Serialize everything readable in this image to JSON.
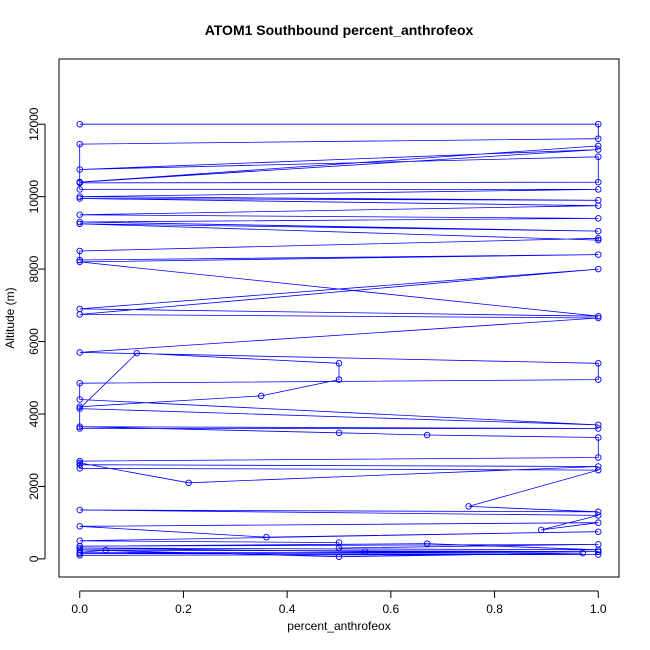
{
  "chart_data": {
    "type": "line",
    "title": "ATOM1 Southbound percent_anthrofeox",
    "xlabel": "percent_anthrofeox",
    "ylabel": "Altitude (m)",
    "xlim": [
      -0.04,
      1.04
    ],
    "ylim": [
      -500,
      13800
    ],
    "x_ticks": [
      0.0,
      0.2,
      0.4,
      0.6,
      0.8,
      1.0
    ],
    "x_tick_labels": [
      "0.0",
      "0.2",
      "0.4",
      "0.6",
      "0.8",
      "1.0"
    ],
    "y_ticks": [
      0,
      2000,
      4000,
      6000,
      8000,
      10000,
      12000
    ],
    "y_tick_labels": [
      "0",
      "2000",
      "4000",
      "6000",
      "8000",
      "10000",
      "12000"
    ],
    "grid": false,
    "colors": {
      "series": "#0000ff",
      "axis": "#000000",
      "background": "#ffffff"
    },
    "series": [
      {
        "style": "line+points",
        "x": [
          0,
          1,
          1,
          0,
          0,
          1,
          0,
          1,
          0,
          1,
          1,
          0,
          0,
          1,
          0,
          1,
          0,
          1,
          0,
          1,
          0,
          1,
          0,
          1,
          1,
          0,
          0,
          1,
          0,
          1,
          0,
          1,
          0,
          1,
          0,
          1,
          1,
          0,
          0,
          1,
          0,
          0.11,
          0.5,
          0.5,
          0.35,
          0,
          0,
          1,
          0,
          0.5,
          0.67,
          1,
          1,
          0,
          0,
          1,
          0.21,
          0,
          0,
          1,
          0.75,
          1,
          0,
          1,
          0.89,
          1,
          0,
          0.36,
          1,
          0,
          0.5,
          0.5,
          1,
          0,
          0.67,
          1,
          0,
          0.55,
          1,
          0,
          0.5,
          0.97,
          0,
          0.05,
          1,
          0,
          1,
          0
        ],
        "y": [
          12000,
          12000,
          11600,
          11450,
          10400,
          11400,
          10400,
          11300,
          10750,
          11100,
          10400,
          10380,
          10200,
          10200,
          10000,
          9900,
          9950,
          9750,
          9500,
          9400,
          9300,
          9050,
          9250,
          8800,
          8850,
          8500,
          8250,
          8400,
          8200,
          6700,
          6900,
          8000,
          6750,
          6650,
          5700,
          5400,
          4950,
          4850,
          4400,
          3700,
          4150,
          5680,
          5400,
          4950,
          4500,
          4200,
          3600,
          3600,
          3650,
          3480,
          3420,
          3350,
          2800,
          2700,
          2600,
          2550,
          2100,
          2650,
          2500,
          2450,
          1450,
          1300,
          1350,
          1200,
          800,
          1000,
          900,
          600,
          750,
          500,
          450,
          300,
          400,
          350,
          420,
          250,
          300,
          200,
          200,
          250,
          60,
          160,
          180,
          240,
          200,
          150,
          120,
          100
        ]
      }
    ]
  }
}
